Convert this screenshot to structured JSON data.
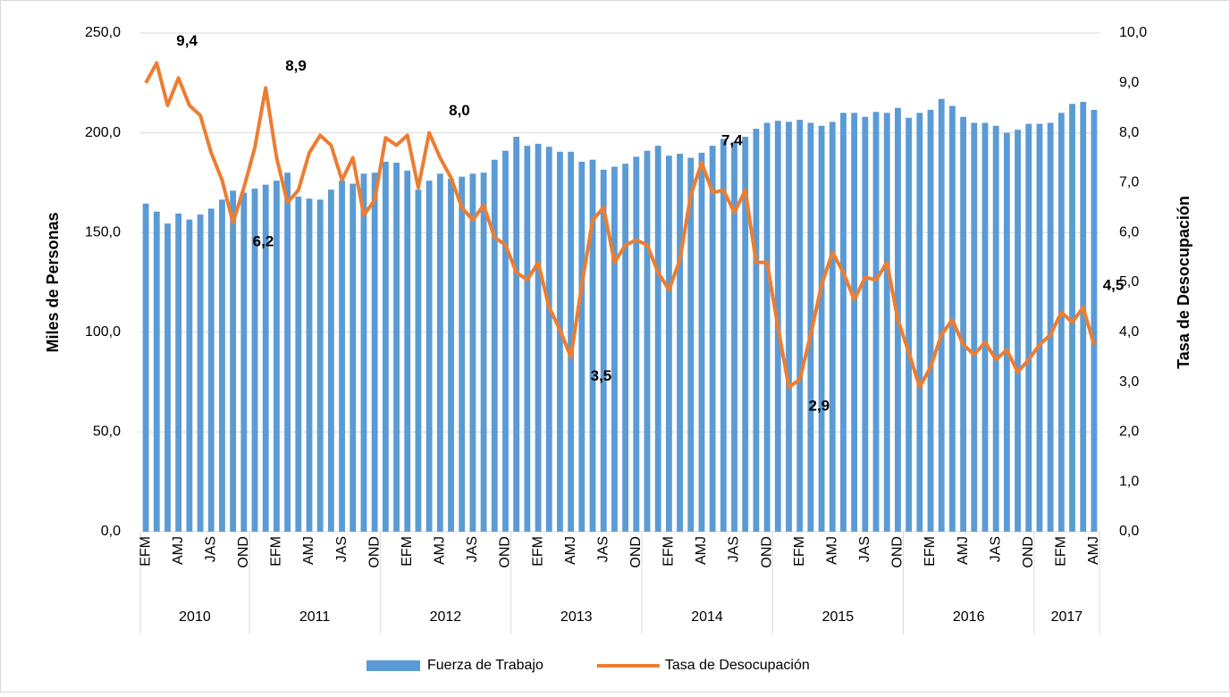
{
  "chart_data": {
    "type": "bar-line",
    "groups": [
      {
        "name": "2010",
        "categories": [
          "EFM",
          null,
          null,
          "AMJ",
          null,
          null,
          "JAS",
          null,
          null,
          "OND"
        ]
      },
      {
        "name": "2011",
        "categories": [
          null,
          null,
          "EFM",
          null,
          null,
          "AMJ",
          null,
          null,
          "JAS",
          null,
          null,
          "OND"
        ]
      },
      {
        "name": "2012",
        "categories": [
          null,
          null,
          "EFM",
          null,
          null,
          "AMJ",
          null,
          null,
          "JAS",
          null,
          null,
          "OND"
        ]
      },
      {
        "name": "2013",
        "categories": [
          null,
          null,
          "EFM",
          null,
          null,
          "AMJ",
          null,
          null,
          "JAS",
          null,
          null,
          "OND"
        ]
      },
      {
        "name": "2014",
        "categories": [
          null,
          null,
          "EFM",
          null,
          null,
          "AMJ",
          null,
          null,
          "JAS",
          null,
          null,
          "OND"
        ]
      },
      {
        "name": "2015",
        "categories": [
          null,
          null,
          "EFM",
          null,
          null,
          "AMJ",
          null,
          null,
          "JAS",
          null,
          null,
          "OND"
        ]
      },
      {
        "name": "2016",
        "categories": [
          null,
          null,
          "EFM",
          null,
          null,
          "AMJ",
          null,
          null,
          "JAS",
          null,
          null,
          "OND"
        ]
      },
      {
        "name": "2017",
        "categories": [
          null,
          null,
          "EFM",
          null,
          null,
          "AMJ"
        ]
      }
    ],
    "y_label": "Miles de Personas",
    "y2_label": "Tasa de Desocupación",
    "ylim": [
      0,
      250
    ],
    "yticks": [
      {
        "value": 0,
        "label": "0,0"
      },
      {
        "value": 50,
        "label": "50,0"
      },
      {
        "value": 100,
        "label": "100,0"
      },
      {
        "value": 150,
        "label": "150,0"
      },
      {
        "value": 200,
        "label": "200,0"
      },
      {
        "value": 250,
        "label": "250,0"
      }
    ],
    "y2lim": [
      0,
      10
    ],
    "y2ticks": [
      {
        "value": 0,
        "label": "0,0"
      },
      {
        "value": 1,
        "label": "1,0"
      },
      {
        "value": 2,
        "label": "2,0"
      },
      {
        "value": 3,
        "label": "3,0"
      },
      {
        "value": 4,
        "label": "4,0"
      },
      {
        "value": 5,
        "label": "5,0"
      },
      {
        "value": 6,
        "label": "6,0"
      },
      {
        "value": 7,
        "label": "7,0"
      },
      {
        "value": 8,
        "label": "8,0"
      },
      {
        "value": 9,
        "label": "9,0"
      },
      {
        "value": 10,
        "label": "10,0"
      }
    ],
    "grid": true,
    "series": [
      {
        "name": "Fuerza de Trabajo",
        "kind": "bar",
        "color": "#5b9bd5",
        "values": [
          164.5,
          160.5,
          154.5,
          159.5,
          156.5,
          159,
          162,
          166.5,
          171,
          170,
          172,
          174,
          176,
          180,
          168,
          167,
          166.5,
          171.5,
          176,
          174.5,
          179.5,
          180,
          185.5,
          185,
          181,
          171.5,
          176,
          179.5,
          177,
          178,
          179.5,
          180,
          186.5,
          191,
          198,
          193.5,
          194.5,
          193,
          190.5,
          190.5,
          185.5,
          186.5,
          181.5,
          183,
          184.5,
          188,
          191,
          193.5,
          188.5,
          189.5,
          187.5,
          190,
          193.5,
          197,
          195.5,
          198,
          202,
          205,
          206,
          205.5,
          206.5,
          205,
          203.5,
          205.5,
          210,
          210,
          208,
          210.5,
          210,
          212.5,
          207.5,
          210,
          211.5,
          217,
          213.5,
          208,
          205,
          205,
          203.5,
          200,
          201.5,
          204.5,
          204.5,
          205,
          210,
          214.5,
          215.5,
          211.5
        ]
      },
      {
        "name": "Tasa de Desocupación",
        "kind": "line",
        "axis": "y2",
        "color": "#ed7d31",
        "values": [
          9.0,
          9.4,
          8.55,
          9.1,
          8.55,
          8.35,
          7.6,
          7.05,
          6.2,
          6.9,
          7.7,
          8.9,
          7.5,
          6.6,
          6.85,
          7.6,
          7.95,
          7.75,
          7.05,
          7.5,
          6.35,
          6.65,
          7.9,
          7.75,
          7.95,
          6.9,
          8.0,
          7.5,
          7.1,
          6.5,
          6.25,
          6.55,
          5.9,
          5.75,
          5.2,
          5.05,
          5.4,
          4.5,
          4.05,
          3.5,
          4.95,
          6.25,
          6.5,
          5.4,
          5.75,
          5.85,
          5.75,
          5.2,
          4.85,
          5.45,
          6.75,
          7.4,
          6.8,
          6.85,
          6.4,
          6.85,
          5.4,
          5.4,
          4.1,
          2.9,
          3.05,
          3.95,
          4.95,
          5.6,
          5.2,
          4.65,
          5.1,
          5.05,
          5.4,
          4.25,
          3.6,
          2.9,
          3.3,
          3.95,
          4.25,
          3.75,
          3.55,
          3.8,
          3.45,
          3.65,
          3.2,
          3.45,
          3.75,
          3.95,
          4.4,
          4.2,
          4.5,
          3.75
        ],
        "value_labels": [
          null,
          "9,4",
          null,
          null,
          null,
          null,
          null,
          null,
          "6,2",
          null,
          null,
          "8,9",
          null,
          null,
          null,
          null,
          null,
          null,
          null,
          null,
          null,
          null,
          null,
          null,
          null,
          null,
          "8,0",
          null,
          null,
          null,
          null,
          null,
          null,
          null,
          null,
          null,
          null,
          null,
          null,
          "3,5",
          null,
          null,
          null,
          null,
          null,
          null,
          null,
          null,
          null,
          null,
          null,
          "7,4",
          null,
          null,
          null,
          null,
          null,
          null,
          null,
          "2,9",
          null,
          null,
          null,
          null,
          null,
          null,
          null,
          null,
          null,
          null,
          null,
          null,
          null,
          null,
          null,
          null,
          null,
          null,
          null,
          null,
          null,
          null,
          null,
          null,
          null,
          null,
          "4,5",
          null
        ]
      }
    ]
  }
}
